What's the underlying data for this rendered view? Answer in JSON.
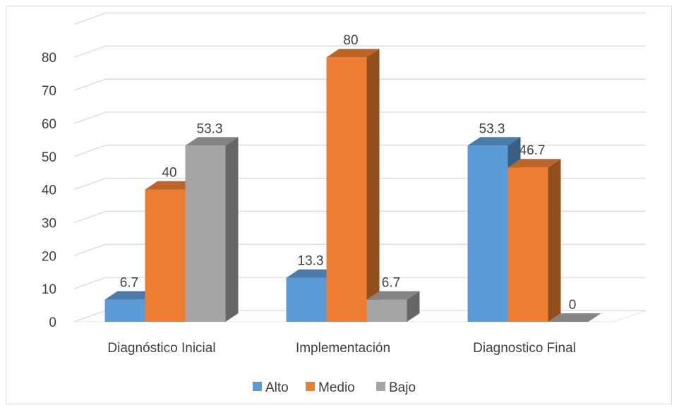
{
  "chart_data": {
    "type": "bar",
    "categories": [
      "Diagnóstico Inicial",
      "Implementación",
      "Diagnostico Final"
    ],
    "series": [
      {
        "name": "Alto",
        "values": [
          6.7,
          13.3,
          53.3
        ],
        "labels": [
          "6.7",
          "13.3",
          "53.3"
        ],
        "color": "#5b9bd5"
      },
      {
        "name": "Medio",
        "values": [
          40,
          80,
          46.7
        ],
        "labels": [
          "40",
          "80",
          "46.7"
        ],
        "color": "#ed7d31"
      },
      {
        "name": "Bajo",
        "values": [
          53.3,
          6.7,
          0
        ],
        "labels": [
          "53.3",
          "6.7",
          "0"
        ],
        "color": "#a5a5a5"
      }
    ],
    "yticks": [
      "0",
      "10",
      "20",
      "30",
      "40",
      "50",
      "60",
      "70",
      "80"
    ],
    "ylim": [
      0,
      80
    ],
    "style": "3d-clustered-column",
    "grid": true,
    "legend_position": "bottom"
  }
}
